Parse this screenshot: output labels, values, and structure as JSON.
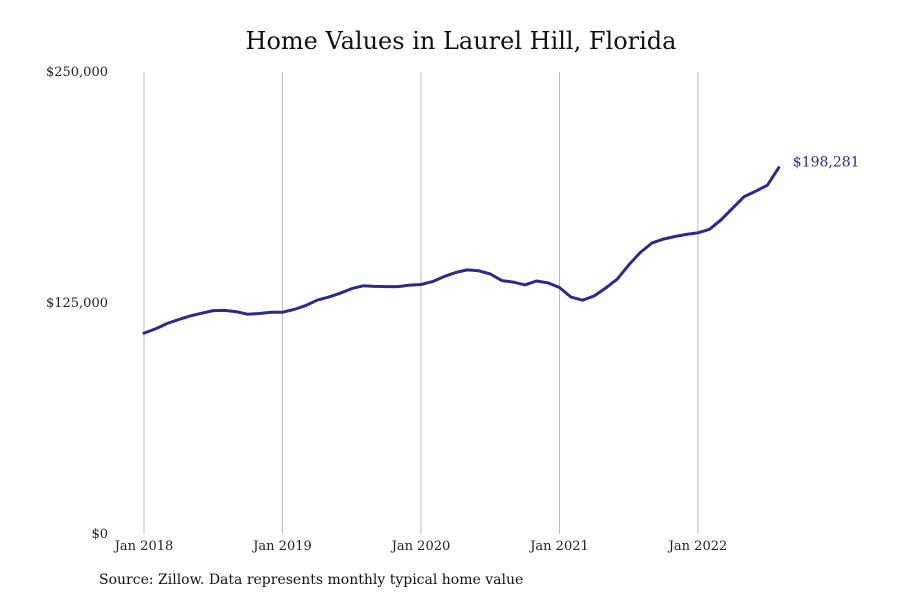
{
  "chart_data": {
    "type": "line",
    "title": "Home Values in Laurel Hill, Florida",
    "source": "Source: Zillow. Data represents monthly typical home value",
    "xlabel": "",
    "ylabel": "",
    "ylim": [
      0,
      250000
    ],
    "y_ticks": [
      {
        "value": 0,
        "label": "$0"
      },
      {
        "value": 125000,
        "label": "$125,000"
      },
      {
        "value": 250000,
        "label": "$250,000"
      }
    ],
    "x_ticks": [
      {
        "date": "2018-01",
        "label": "Jan 2018"
      },
      {
        "date": "2019-01",
        "label": "Jan 2019"
      },
      {
        "date": "2020-01",
        "label": "Jan 2020"
      },
      {
        "date": "2021-01",
        "label": "Jan 2021"
      },
      {
        "date": "2022-01",
        "label": "Jan 2022"
      }
    ],
    "grid": "vertical",
    "line_color": "#2e2a8a",
    "end_label": "$198,281",
    "series": [
      {
        "x": [
          "2018-01",
          "2018-02",
          "2018-03",
          "2018-04",
          "2018-05",
          "2018-06",
          "2018-07",
          "2018-08",
          "2018-09",
          "2018-10",
          "2018-11",
          "2018-12",
          "2019-01",
          "2019-02",
          "2019-03",
          "2019-04",
          "2019-05",
          "2019-06",
          "2019-07",
          "2019-08",
          "2019-09",
          "2019-10",
          "2019-11",
          "2019-12",
          "2020-01",
          "2020-02",
          "2020-03",
          "2020-04",
          "2020-05",
          "2020-06",
          "2020-07",
          "2020-08",
          "2020-09",
          "2020-10",
          "2020-11",
          "2020-12",
          "2021-01",
          "2021-02",
          "2021-03",
          "2021-04",
          "2021-05",
          "2021-06",
          "2021-07",
          "2021-08",
          "2021-09",
          "2021-10",
          "2021-11",
          "2021-12",
          "2022-01",
          "2022-02",
          "2022-03",
          "2022-04",
          "2022-05",
          "2022-06",
          "2022-07",
          "2022-08"
        ],
        "values": [
          108700,
          111000,
          113900,
          116000,
          118000,
          119500,
          120900,
          121000,
          120300,
          118900,
          119300,
          120000,
          120000,
          121500,
          123600,
          126500,
          128200,
          130300,
          132800,
          134300,
          134000,
          133900,
          133900,
          134700,
          135000,
          136600,
          139300,
          141500,
          142900,
          142400,
          140700,
          137100,
          136300,
          134800,
          136900,
          135900,
          133400,
          128200,
          126500,
          128800,
          133100,
          137900,
          145600,
          152300,
          157400,
          159600,
          161000,
          162100,
          163000,
          164900,
          170000,
          176300,
          182600,
          185500,
          188700,
          198281
        ]
      }
    ]
  }
}
